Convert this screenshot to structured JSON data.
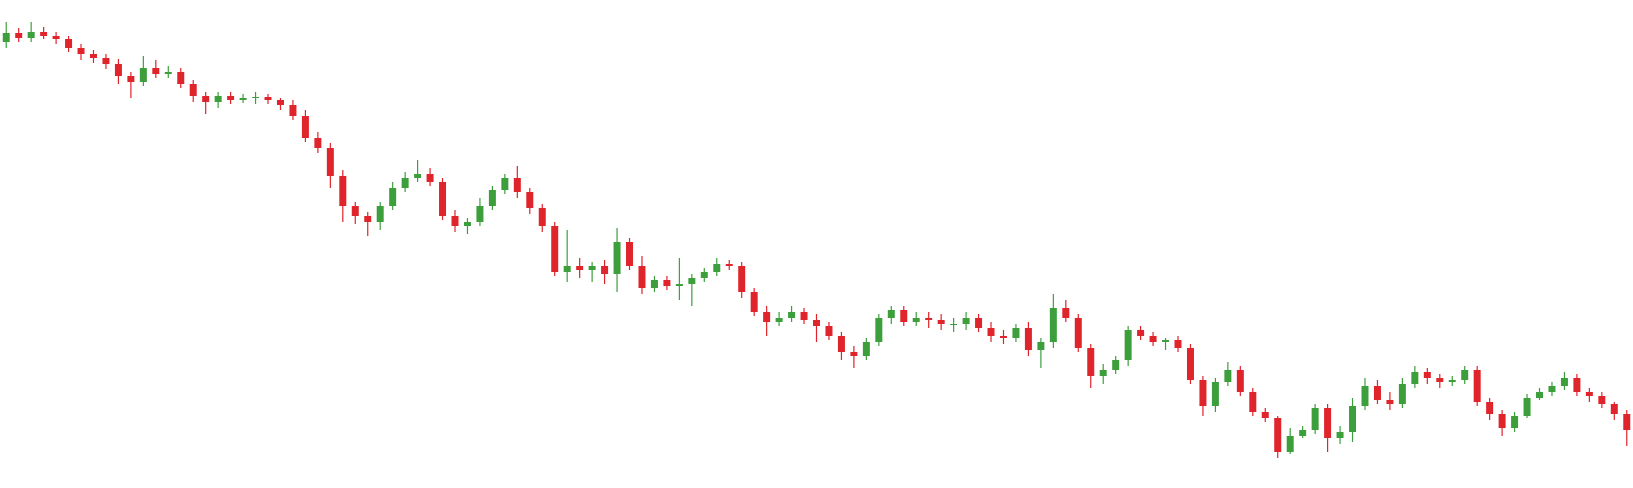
{
  "chart_data": {
    "type": "candlestick",
    "up_color": "#3c9f3c",
    "down_color": "#e0242b",
    "ylim": [
      0,
      488
    ],
    "open": [
      446,
      455,
      450,
      456,
      452,
      449,
      440,
      434,
      430,
      424,
      412,
      406,
      420,
      414,
      416,
      404,
      392,
      386,
      392,
      388,
      390,
      391,
      388,
      383,
      372,
      350,
      340,
      312,
      282,
      272,
      266,
      282,
      300,
      310,
      314,
      306,
      272,
      262,
      266,
      282,
      298,
      310,
      296,
      280,
      262,
      216,
      222,
      218,
      222,
      214,
      246,
      222,
      200,
      208,
      202,
      204,
      210,
      216,
      224,
      222,
      196,
      176,
      166,
      170,
      176,
      168,
      162,
      152,
      136,
      132,
      146,
      170,
      178,
      166,
      170,
      168,
      164,
      164,
      170,
      160,
      152,
      150,
      160,
      138,
      146,
      180,
      170,
      140,
      112,
      118,
      128,
      158,
      152,
      146,
      148,
      140,
      108,
      82,
      106,
      118,
      96,
      76,
      70,
      36,
      52,
      58,
      80,
      50,
      56,
      82,
      102,
      88,
      84,
      104,
      116,
      110,
      106,
      108,
      118,
      86,
      74,
      60,
      72,
      90,
      96,
      102,
      110,
      96,
      92,
      84,
      74
    ],
    "high": [
      466,
      460,
      466,
      461,
      456,
      452,
      444,
      438,
      434,
      429,
      416,
      432,
      428,
      422,
      420,
      408,
      396,
      396,
      396,
      394,
      396,
      394,
      390,
      388,
      378,
      356,
      345,
      318,
      286,
      276,
      286,
      306,
      316,
      328,
      320,
      310,
      278,
      270,
      290,
      302,
      314,
      322,
      300,
      284,
      266,
      258,
      230,
      226,
      228,
      260,
      250,
      232,
      212,
      212,
      230,
      214,
      220,
      230,
      228,
      226,
      200,
      182,
      176,
      182,
      180,
      174,
      166,
      156,
      142,
      150,
      174,
      182,
      182,
      176,
      176,
      174,
      170,
      176,
      174,
      166,
      158,
      164,
      166,
      150,
      194,
      188,
      174,
      144,
      124,
      132,
      162,
      162,
      156,
      150,
      152,
      144,
      112,
      110,
      126,
      122,
      100,
      80,
      72,
      60,
      62,
      84,
      84,
      62,
      90,
      110,
      108,
      96,
      110,
      122,
      120,
      114,
      112,
      122,
      122,
      90,
      78,
      76,
      94,
      100,
      106,
      116,
      114,
      100,
      96,
      86,
      78
    ],
    "low": [
      440,
      446,
      446,
      449,
      444,
      436,
      428,
      425,
      419,
      404,
      390,
      402,
      410,
      410,
      400,
      386,
      374,
      380,
      384,
      385,
      384,
      384,
      378,
      368,
      346,
      335,
      300,
      266,
      264,
      252,
      258,
      278,
      296,
      306,
      302,
      268,
      256,
      254,
      262,
      278,
      294,
      290,
      274,
      256,
      212,
      206,
      210,
      206,
      204,
      196,
      218,
      194,
      196,
      198,
      188,
      182,
      206,
      212,
      218,
      190,
      172,
      152,
      162,
      166,
      164,
      146,
      148,
      128,
      120,
      128,
      142,
      164,
      162,
      162,
      160,
      158,
      156,
      158,
      156,
      146,
      144,
      146,
      132,
      120,
      140,
      166,
      136,
      100,
      104,
      114,
      122,
      148,
      142,
      138,
      136,
      104,
      72,
      76,
      102,
      92,
      72,
      66,
      30,
      34,
      50,
      54,
      36,
      44,
      46,
      78,
      84,
      78,
      80,
      100,
      104,
      100,
      102,
      104,
      82,
      68,
      52,
      56,
      70,
      88,
      92,
      98,
      92,
      86,
      80,
      68,
      42
    ],
    "close": [
      455,
      450,
      456,
      452,
      449,
      440,
      434,
      430,
      424,
      412,
      406,
      420,
      414,
      416,
      404,
      392,
      386,
      392,
      388,
      390,
      391,
      388,
      383,
      372,
      350,
      340,
      312,
      282,
      272,
      266,
      282,
      300,
      310,
      314,
      306,
      272,
      262,
      266,
      282,
      298,
      310,
      296,
      280,
      262,
      216,
      222,
      218,
      222,
      214,
      246,
      222,
      200,
      208,
      202,
      204,
      210,
      216,
      224,
      222,
      196,
      176,
      166,
      170,
      176,
      168,
      162,
      152,
      136,
      132,
      146,
      170,
      178,
      166,
      170,
      168,
      164,
      164,
      170,
      160,
      152,
      150,
      160,
      138,
      146,
      180,
      170,
      140,
      112,
      118,
      128,
      158,
      152,
      146,
      148,
      140,
      108,
      82,
      106,
      118,
      96,
      76,
      70,
      36,
      52,
      58,
      80,
      50,
      56,
      82,
      102,
      88,
      84,
      104,
      116,
      110,
      106,
      108,
      118,
      86,
      74,
      60,
      72,
      90,
      96,
      102,
      110,
      96,
      92,
      84,
      74,
      58
    ]
  }
}
